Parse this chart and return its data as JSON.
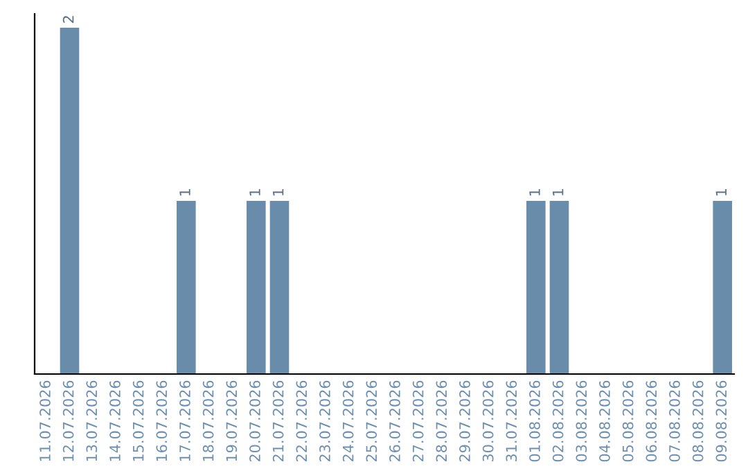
{
  "chart_data": {
    "type": "bar",
    "categories": [
      "11.07.2026",
      "12.07.2026",
      "13.07.2026",
      "14.07.2026",
      "15.07.2026",
      "16.07.2026",
      "17.07.2026",
      "18.07.2026",
      "19.07.2026",
      "20.07.2026",
      "21.07.2026",
      "22.07.2026",
      "23.07.2026",
      "24.07.2026",
      "25.07.2026",
      "26.07.2026",
      "27.07.2026",
      "28.07.2026",
      "29.07.2026",
      "30.07.2026",
      "31.07.2026",
      "01.08.2026",
      "02.08.2026",
      "03.08.2026",
      "04.08.2026",
      "05.08.2026",
      "06.08.2026",
      "07.08.2026",
      "08.08.2026",
      "09.08.2026"
    ],
    "values": [
      0,
      2,
      0,
      0,
      0,
      0,
      1,
      0,
      0,
      1,
      1,
      0,
      0,
      0,
      0,
      0,
      0,
      0,
      0,
      0,
      0,
      1,
      1,
      0,
      0,
      0,
      0,
      0,
      0,
      1
    ],
    "value_labels": [
      null,
      "2",
      null,
      null,
      null,
      null,
      "1",
      null,
      null,
      "1",
      "1",
      null,
      null,
      null,
      null,
      null,
      null,
      null,
      null,
      null,
      null,
      "1",
      "1",
      null,
      null,
      null,
      null,
      null,
      null,
      "1"
    ],
    "color": "#6a8cab",
    "tick_labels": "x",
    "grid": false,
    "legend": false
  }
}
